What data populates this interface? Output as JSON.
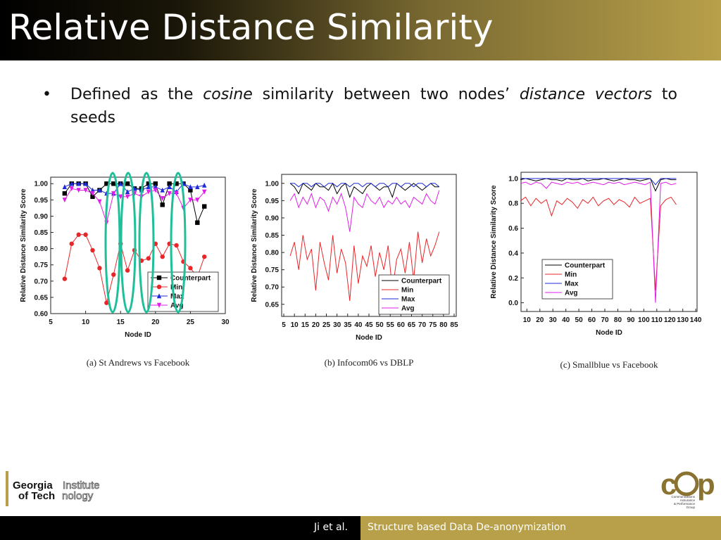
{
  "slide_title": "Relative Distance Similarity",
  "bullet": [
    "Defined as the ",
    "cosine",
    " similarity between two nodes’ ",
    "distance vectors",
    " to seeds"
  ],
  "footer": {
    "author": "Ji et al.",
    "talk": "Structure based Data De-anonymization"
  },
  "logos": {
    "gatech": [
      "Georgia",
      "Institute",
      "of Tech",
      "nology"
    ],
    "cap": [
      "c",
      "p",
      "Communications",
      "Assurance",
      "& Performance",
      "Group"
    ]
  },
  "chart_data": [
    {
      "type": "line",
      "markers": true,
      "caption": "(a)  St Andrews vs Facebook",
      "xlabel": "Node ID",
      "ylabel": "Relative Distance Similarity Score",
      "legend": "lower right",
      "xlim": [
        5,
        30
      ],
      "xticks": [
        5,
        10,
        15,
        20,
        25,
        30
      ],
      "ylim": [
        0.6,
        1.02
      ],
      "yticks": [
        {
          "value": 0.6,
          "label": "0.60"
        },
        0.65,
        {
          "value": 0.7,
          "label": "0.70"
        },
        0.75,
        {
          "value": 0.8,
          "label": "0.80"
        },
        0.85,
        {
          "value": 0.9,
          "label": "0.90"
        },
        0.95,
        {
          "value": 1.0,
          "label": "1.00"
        }
      ],
      "x": [
        7,
        8,
        9,
        10,
        11,
        12,
        13,
        14,
        15,
        16,
        17,
        18,
        19,
        20,
        21,
        22,
        23,
        24,
        25,
        26,
        27
      ],
      "series": [
        {
          "name": "Counterpart",
          "color": "#000000",
          "marker": "square",
          "values": [
            0.97,
            1.0,
            1.0,
            1.0,
            0.96,
            0.98,
            1.0,
            1.0,
            1.0,
            1.0,
            0.985,
            0.985,
            1.0,
            1.0,
            0.935,
            1.0,
            1.0,
            1.0,
            0.98,
            0.88,
            0.93
          ]
        },
        {
          "name": "Min",
          "color": "#e8262a",
          "marker": "circle",
          "values": [
            0.707,
            0.815,
            0.843,
            0.843,
            0.795,
            0.74,
            0.633,
            0.72,
            0.815,
            0.733,
            0.795,
            0.763,
            0.77,
            0.815,
            0.775,
            0.815,
            0.81,
            0.76,
            0.74,
            0.713,
            0.775
          ]
        },
        {
          "name": "Max",
          "color": "#1f2bd6",
          "marker": "triangle",
          "values": [
            0.99,
            1.0,
            1.0,
            1.0,
            0.98,
            0.98,
            0.97,
            0.97,
            1.0,
            0.975,
            0.985,
            0.98,
            0.99,
            0.99,
            0.98,
            0.99,
            0.975,
            1.0,
            0.99,
            0.99,
            0.995
          ]
        },
        {
          "name": "Avg",
          "color": "#e01ee8",
          "marker": "down-triangle",
          "values": [
            0.95,
            0.985,
            0.98,
            0.98,
            0.97,
            0.945,
            0.88,
            0.97,
            0.96,
            0.96,
            0.97,
            0.96,
            0.975,
            0.98,
            0.955,
            0.97,
            0.97,
            0.925,
            0.95,
            0.95,
            0.975
          ]
        }
      ]
    },
    {
      "type": "line",
      "markers": false,
      "caption": "(b)  Infocom06 vs DBLP",
      "xlabel": "Node ID",
      "ylabel": "Relative Distance Similarity Score",
      "legend": "lower right",
      "xlim": [
        4,
        86
      ],
      "xticks": [
        5,
        10,
        15,
        20,
        25,
        30,
        35,
        40,
        45,
        50,
        55,
        60,
        65,
        70,
        75,
        80,
        85
      ],
      "ylim": [
        0.615,
        1.026
      ],
      "yticks": [
        0.65,
        {
          "value": 0.7,
          "label": "0.70"
        },
        0.75,
        {
          "value": 0.8,
          "label": "0.80"
        },
        0.85,
        {
          "value": 0.9,
          "label": "0.90"
        },
        0.95,
        {
          "value": 1.0,
          "label": "1.00"
        }
      ],
      "x": [
        8,
        10,
        12,
        14,
        16,
        18,
        20,
        22,
        24,
        26,
        28,
        30,
        32,
        34,
        36,
        38,
        40,
        42,
        44,
        46,
        48,
        50,
        52,
        54,
        56,
        58,
        60,
        62,
        64,
        66,
        68,
        70,
        72,
        74,
        76,
        78
      ],
      "series": [
        {
          "name": "Counterpart",
          "color": "#000000",
          "values": [
            1.0,
            0.99,
            0.97,
            1.0,
            0.99,
            0.98,
            1.0,
            0.99,
            0.99,
            0.98,
            1.0,
            0.97,
            0.99,
            1.0,
            0.96,
            0.99,
            0.98,
            0.97,
            0.99,
            1.0,
            0.99,
            0.98,
            0.99,
            0.99,
            0.96,
            1.0,
            0.99,
            0.98,
            0.99,
            1.0,
            0.99,
            0.98,
            0.99,
            1.0,
            0.99,
            0.99
          ]
        },
        {
          "name": "Min",
          "color": "#e8262a",
          "values": [
            0.79,
            0.83,
            0.75,
            0.85,
            0.78,
            0.81,
            0.69,
            0.83,
            0.77,
            0.72,
            0.85,
            0.74,
            0.81,
            0.77,
            0.66,
            0.82,
            0.71,
            0.79,
            0.76,
            0.82,
            0.73,
            0.8,
            0.75,
            0.82,
            0.69,
            0.78,
            0.81,
            0.74,
            0.83,
            0.72,
            0.86,
            0.77,
            0.84,
            0.79,
            0.82,
            0.86
          ]
        },
        {
          "name": "Max",
          "color": "#1f2bd6",
          "values": [
            1.0,
            1.0,
            0.99,
            1.0,
            1.0,
            0.99,
            1.0,
            1.0,
            0.99,
            1.0,
            1.0,
            0.99,
            1.0,
            1.0,
            0.99,
            1.0,
            1.0,
            0.99,
            1.0,
            1.0,
            0.99,
            1.0,
            1.0,
            0.99,
            1.0,
            1.0,
            0.99,
            1.0,
            1.0,
            0.99,
            1.0,
            1.0,
            0.99,
            1.0,
            1.0,
            0.99
          ]
        },
        {
          "name": "Avg",
          "color": "#e01ee8",
          "values": [
            0.95,
            0.97,
            0.93,
            0.96,
            0.94,
            0.97,
            0.93,
            0.96,
            0.95,
            0.92,
            0.96,
            0.94,
            0.97,
            0.93,
            0.86,
            0.96,
            0.94,
            0.93,
            0.97,
            0.95,
            0.94,
            0.96,
            0.93,
            0.95,
            0.94,
            0.96,
            0.94,
            0.95,
            0.93,
            0.96,
            0.95,
            0.94,
            0.97,
            0.95,
            0.94,
            0.98
          ]
        }
      ]
    },
    {
      "type": "line",
      "markers": false,
      "caption": "(c)  Smallblue vs Facebook",
      "xlabel": "Node ID",
      "ylabel": "Relative Distance Similarity Score",
      "legend": "lower left",
      "xlim": [
        5.5,
        141
      ],
      "xticks": [
        10,
        20,
        30,
        40,
        50,
        60,
        70,
        80,
        90,
        100,
        110,
        120,
        130,
        140
      ],
      "ylim": [
        -0.07,
        1.05
      ],
      "yticks": [
        {
          "value": 0.0,
          "label": "0.0"
        },
        0.2,
        0.4,
        0.6,
        0.8,
        {
          "value": 1.0,
          "label": "1.0"
        }
      ],
      "x": [
        5,
        9,
        13,
        17,
        21,
        25,
        29,
        33,
        37,
        41,
        45,
        49,
        53,
        57,
        61,
        65,
        69,
        73,
        77,
        81,
        85,
        89,
        93,
        97,
        101,
        105,
        109,
        113,
        117,
        121,
        125
      ],
      "series": [
        {
          "name": "Counterpart",
          "color": "#000000",
          "values": [
            0.99,
            1.0,
            0.99,
            0.98,
            0.99,
            1.0,
            0.99,
            0.99,
            0.98,
            1.0,
            0.99,
            0.99,
            1.0,
            0.98,
            0.99,
            0.99,
            1.0,
            0.99,
            0.98,
            0.99,
            1.0,
            0.99,
            0.99,
            0.98,
            0.99,
            1.0,
            0.9,
            0.99,
            1.0,
            0.99,
            0.99
          ]
        },
        {
          "name": "Min",
          "color": "#e8262a",
          "values": [
            0.82,
            0.85,
            0.78,
            0.84,
            0.8,
            0.83,
            0.7,
            0.82,
            0.79,
            0.84,
            0.81,
            0.76,
            0.83,
            0.8,
            0.85,
            0.78,
            0.82,
            0.84,
            0.79,
            0.83,
            0.81,
            0.77,
            0.85,
            0.8,
            0.82,
            0.84,
            0.1,
            0.78,
            0.83,
            0.85,
            0.79
          ]
        },
        {
          "name": "Max",
          "color": "#1f2bd6",
          "values": [
            1.0,
            1.0,
            1.0,
            1.0,
            1.0,
            1.0,
            1.0,
            1.0,
            1.0,
            1.0,
            1.0,
            1.0,
            1.0,
            1.0,
            1.0,
            1.0,
            1.0,
            1.0,
            1.0,
            1.0,
            1.0,
            1.0,
            1.0,
            1.0,
            1.0,
            1.0,
            0.95,
            1.0,
            1.0,
            1.0,
            1.0
          ]
        },
        {
          "name": "Avg",
          "color": "#e01ee8",
          "values": [
            0.96,
            0.97,
            0.95,
            0.97,
            0.96,
            0.92,
            0.97,
            0.96,
            0.95,
            0.97,
            0.96,
            0.97,
            0.95,
            0.96,
            0.97,
            0.96,
            0.95,
            0.97,
            0.96,
            0.97,
            0.95,
            0.96,
            0.97,
            0.96,
            0.95,
            0.97,
            0.0,
            0.96,
            0.97,
            0.95,
            0.96
          ]
        }
      ]
    }
  ]
}
